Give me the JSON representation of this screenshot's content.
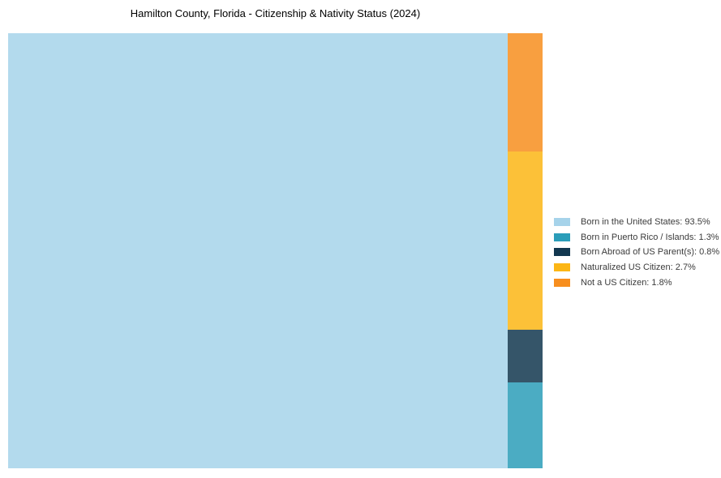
{
  "page": {
    "background_color": "#ffffff"
  },
  "chart_data": {
    "type": "treemap",
    "title": "Hamilton County, Florida - Citizenship & Nativity Status (2024)",
    "unit": "%",
    "legend_position": "right",
    "right_column_order_top_to_bottom": [
      "Not a US Citizen",
      "Naturalized US Citizen",
      "Born Abroad of US Parent(s)",
      "Born in Puerto Rico / Islands"
    ],
    "series": [
      {
        "label": "Born in the United States",
        "value": 93.5,
        "color": "#a6d3ea",
        "legend_text": "Born in the United States: 93.5%"
      },
      {
        "label": "Born in Puerto Rico / Islands",
        "value": 1.3,
        "color": "#2b9db9",
        "legend_text": "Born in Puerto Rico / Islands: 1.3%"
      },
      {
        "label": "Born Abroad of US Parent(s)",
        "value": 0.8,
        "color": "#12374f",
        "legend_text": "Born Abroad of US Parent(s): 0.8%"
      },
      {
        "label": "Naturalized US Citizen",
        "value": 2.7,
        "color": "#fcb615",
        "legend_text": "Naturalized US Citizen: 2.7%"
      },
      {
        "label": "Not a US Citizen",
        "value": 1.8,
        "color": "#f78e1e",
        "legend_text": "Not a US Citizen: 1.8%"
      }
    ]
  }
}
